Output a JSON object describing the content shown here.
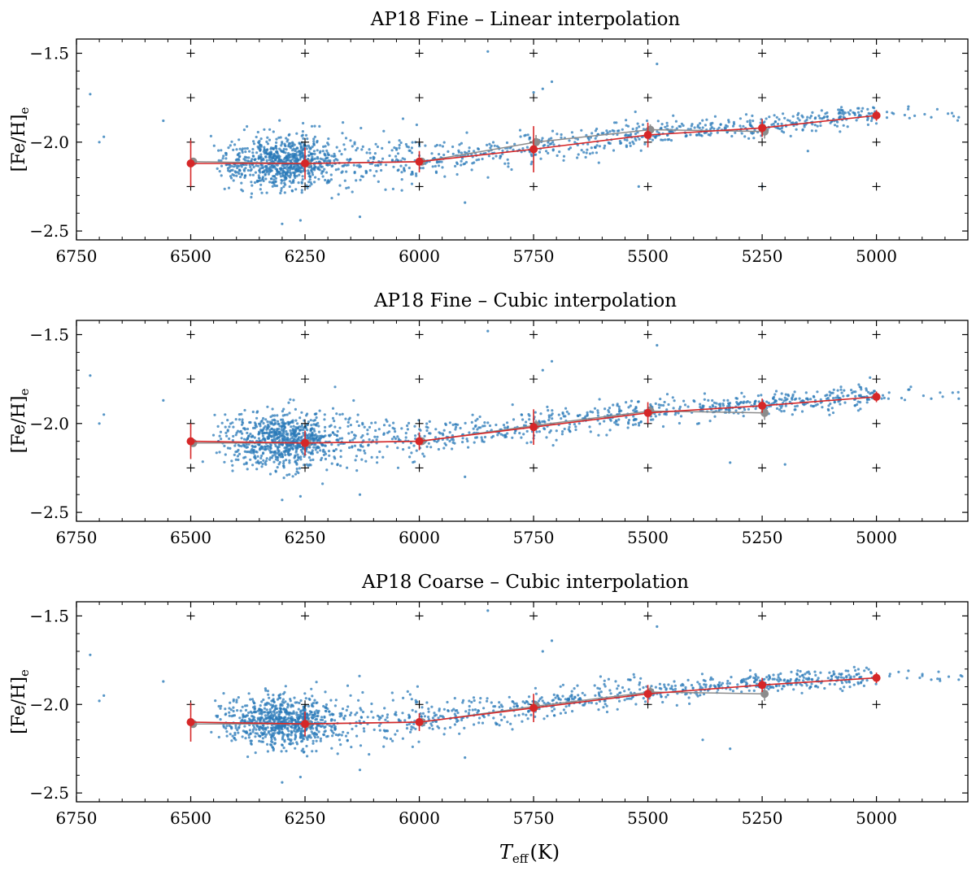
{
  "figure": {
    "x_label_main": "T",
    "x_label_sub": "eff",
    "x_label_unit": "(K)",
    "y_label_main": "[Fe/H]",
    "y_label_sub": "e"
  },
  "colors": {
    "scatter": "#2a7ab8",
    "red": "#d62728",
    "gray": "#8c8c8c",
    "grid_marker": "#000000"
  },
  "chart_data": [
    {
      "type": "scatter",
      "title": "AP18 Fine – Linear interpolation",
      "xlabel": "",
      "ylabel": "[Fe/H]e",
      "xlim": [
        6750,
        4800
      ],
      "ylim": [
        -2.55,
        -1.42
      ],
      "x_ticks": [
        6750,
        6500,
        6250,
        6000,
        5750,
        5500,
        5250,
        5000
      ],
      "x_tick_labels": [
        "6750",
        "6500",
        "6250",
        "6000",
        "5750",
        "5500",
        "5250",
        "5000"
      ],
      "y_ticks": [
        -2.5,
        -2.0,
        -1.5
      ],
      "y_tick_labels": [
        "−2.5",
        "−2.0",
        "−1.5"
      ],
      "grid_nodes": {
        "teff": [
          6500,
          6250,
          6000,
          5750,
          5500,
          5250,
          5000
        ],
        "feh": [
          -2.25,
          -2.0,
          -1.75,
          -1.5
        ]
      },
      "series": [
        {
          "name": "red",
          "x": [
            6500,
            6250,
            6000,
            5750,
            5500,
            5250,
            5000
          ],
          "y": [
            -2.12,
            -2.12,
            -2.11,
            -2.04,
            -1.96,
            -1.92,
            -1.85
          ],
          "err": [
            0.13,
            0.09,
            0.06,
            0.13,
            0.07,
            0.05,
            0.03
          ]
        },
        {
          "name": "gray",
          "x": [
            6500,
            6250,
            6000,
            5750,
            5500,
            5250
          ],
          "y": [
            -2.11,
            -2.12,
            -2.11,
            -2.0,
            -1.93,
            -1.94
          ],
          "err": [
            0.0,
            0.0,
            0.0,
            0.04,
            0.03,
            0.04
          ]
        }
      ],
      "outliers": [
        [
          6720,
          -1.73
        ],
        [
          6700,
          -2.0
        ],
        [
          6690,
          -1.97
        ],
        [
          6560,
          -1.88
        ],
        [
          5850,
          -1.49
        ],
        [
          5750,
          -1.72
        ],
        [
          5730,
          -1.7
        ],
        [
          5710,
          -1.66
        ],
        [
          5480,
          -1.56
        ],
        [
          6130,
          -2.42
        ],
        [
          6300,
          -2.46
        ],
        [
          6260,
          -2.44
        ],
        [
          5900,
          -2.34
        ],
        [
          5520,
          -2.25
        ],
        [
          5250,
          -2.25
        ],
        [
          5150,
          -2.05
        ],
        [
          4930,
          -1.8
        ],
        [
          4880,
          -1.86
        ],
        [
          4820,
          -1.86
        ]
      ]
    },
    {
      "type": "scatter",
      "title": "AP18 Fine – Cubic interpolation",
      "xlabel": "",
      "ylabel": "[Fe/H]e",
      "xlim": [
        6750,
        4800
      ],
      "ylim": [
        -2.55,
        -1.42
      ],
      "x_ticks": [
        6750,
        6500,
        6250,
        6000,
        5750,
        5500,
        5250,
        5000
      ],
      "x_tick_labels": [
        "6750",
        "6500",
        "6250",
        "6000",
        "5750",
        "5500",
        "5250",
        "5000"
      ],
      "y_ticks": [
        -2.5,
        -2.0,
        -1.5
      ],
      "y_tick_labels": [
        "−2.5",
        "−2.0",
        "−1.5"
      ],
      "grid_nodes": {
        "teff": [
          6500,
          6250,
          6000,
          5750,
          5500,
          5250,
          5000
        ],
        "feh": [
          -2.25,
          -2.0,
          -1.75,
          -1.5
        ]
      },
      "series": [
        {
          "name": "red",
          "x": [
            6500,
            6250,
            6000,
            5750,
            5500,
            5250,
            5000
          ],
          "y": [
            -2.1,
            -2.11,
            -2.1,
            -2.02,
            -1.94,
            -1.9,
            -1.85
          ],
          "err": [
            0.1,
            0.07,
            0.05,
            0.1,
            0.06,
            0.04,
            0.03
          ]
        },
        {
          "name": "gray",
          "x": [
            6500,
            6250,
            6000,
            5750,
            5500,
            5250
          ],
          "y": [
            -2.11,
            -2.11,
            -2.1,
            -2.01,
            -1.93,
            -1.94
          ],
          "err": [
            0.0,
            0.0,
            0.0,
            0.03,
            0.03,
            0.04
          ]
        }
      ],
      "outliers": [
        [
          6720,
          -1.73
        ],
        [
          6700,
          -2.0
        ],
        [
          6690,
          -1.95
        ],
        [
          6560,
          -1.87
        ],
        [
          5850,
          -1.48
        ],
        [
          5730,
          -1.7
        ],
        [
          5710,
          -1.65
        ],
        [
          5480,
          -1.56
        ],
        [
          6130,
          -2.4
        ],
        [
          6300,
          -2.43
        ],
        [
          6260,
          -2.41
        ],
        [
          5900,
          -2.3
        ],
        [
          5320,
          -2.22
        ],
        [
          5200,
          -2.23
        ],
        [
          4930,
          -1.81
        ],
        [
          4880,
          -1.86
        ],
        [
          4820,
          -1.86
        ]
      ]
    },
    {
      "type": "scatter",
      "title": "AP18 Coarse – Cubic interpolation",
      "xlabel": "Teff(K)",
      "ylabel": "[Fe/H]e",
      "xlim": [
        6750,
        4800
      ],
      "ylim": [
        -2.55,
        -1.42
      ],
      "x_ticks": [
        6750,
        6500,
        6250,
        6000,
        5750,
        5500,
        5250,
        5000
      ],
      "x_tick_labels": [
        "6750",
        "6500",
        "6250",
        "6000",
        "5750",
        "5500",
        "5250",
        "5000"
      ],
      "y_ticks": [
        -2.5,
        -2.0,
        -1.5
      ],
      "y_tick_labels": [
        "−2.5",
        "−2.0",
        "−1.5"
      ],
      "grid_nodes": {
        "teff": [
          6500,
          6250,
          6000,
          5750,
          5500,
          5250,
          5000
        ],
        "feh": [
          -2.0,
          -1.5
        ]
      },
      "series": [
        {
          "name": "red",
          "x": [
            6500,
            6250,
            6000,
            5750,
            5500,
            5250,
            5000
          ],
          "y": [
            -2.1,
            -2.11,
            -2.1,
            -2.02,
            -1.94,
            -1.89,
            -1.85
          ],
          "err": [
            0.11,
            0.07,
            0.05,
            0.08,
            0.05,
            0.04,
            0.03
          ]
        },
        {
          "name": "gray",
          "x": [
            6500,
            6250,
            6000,
            5750,
            5500,
            5250
          ],
          "y": [
            -2.11,
            -2.11,
            -2.1,
            -2.01,
            -1.93,
            -1.94
          ],
          "err": [
            0.0,
            0.0,
            0.0,
            0.03,
            0.03,
            0.04
          ]
        }
      ],
      "outliers": [
        [
          6720,
          -1.72
        ],
        [
          6700,
          -1.98
        ],
        [
          6690,
          -1.95
        ],
        [
          6560,
          -1.87
        ],
        [
          5850,
          -1.47
        ],
        [
          5730,
          -1.7
        ],
        [
          5710,
          -1.64
        ],
        [
          5480,
          -1.56
        ],
        [
          6130,
          -2.37
        ],
        [
          6300,
          -2.44
        ],
        [
          6260,
          -2.41
        ],
        [
          5900,
          -2.3
        ],
        [
          5380,
          -2.2
        ],
        [
          5320,
          -2.25
        ],
        [
          4930,
          -1.81
        ],
        [
          4880,
          -1.86
        ],
        [
          4820,
          -1.86
        ]
      ]
    }
  ]
}
